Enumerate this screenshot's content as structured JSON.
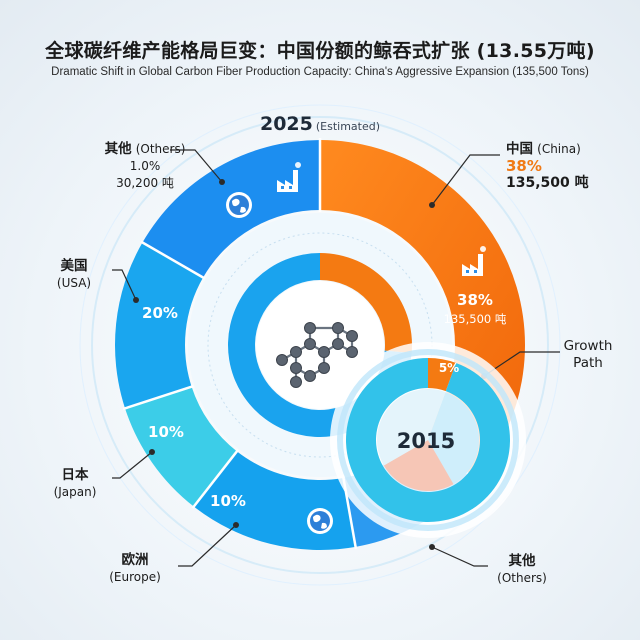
{
  "title_zh": "全球碳纤维产能格局巨变：中国份额的鲸吞式扩张 (13.55万吨)",
  "title_en": "Dramatic Shift in Global Carbon Fiber Production Capacity: China's Aggressive Expansion (135,500 Tons)",
  "colors": {
    "china": "#f47a12",
    "usa": "#1aa6ef",
    "japan": "#3ccde8",
    "europe": "#15a2ee",
    "others": "#1c8ef0",
    "unlabeled": "#2c9af0"
  },
  "chart_data": [
    {
      "type": "pie",
      "title": "2025",
      "subtitle": "(Estimated)",
      "slices": [
        {
          "label_zh": "中国",
          "label_en": "(China)",
          "value": 38,
          "value_text": "38%",
          "tons_text": "135,500 吨",
          "inner_pct": "38%",
          "inner_tons": "135,500 吨",
          "color": "#f47a12"
        },
        {
          "label_zh": "其他",
          "label_en": "(Others)",
          "value": 20,
          "value_text": "",
          "color": "#2c9af0"
        },
        {
          "label_zh": "欧洲",
          "label_en": "(Europe)",
          "value": 10,
          "value_text": "10%",
          "color": "#15a2ee"
        },
        {
          "label_zh": "日本",
          "label_en": "(Japan)",
          "value": 10,
          "value_text": "10%",
          "color": "#3ccde8"
        },
        {
          "label_zh": "美国",
          "label_en": "(USA)",
          "value": 20,
          "value_text": "20%",
          "color": "#1aa6ef"
        },
        {
          "label_zh": "其他",
          "label_en": "(Others)",
          "value": 1.0,
          "value_text": "1.0%",
          "tons_text": "30,200 吨",
          "color": "#1c8ef0"
        }
      ]
    },
    {
      "type": "pie",
      "title": "2015",
      "slices": [
        {
          "label_zh": "中国",
          "label_en": "(China)",
          "value": 5,
          "value_text": "5%",
          "color": "#f47a12"
        },
        {
          "label_zh": "其他",
          "label_en": "(Others)",
          "value": 95,
          "value_text": "",
          "color": "#3ccde8"
        }
      ]
    }
  ],
  "labels": {
    "china_zh": "中国",
    "china_en": "(China)",
    "china_pct": "38%",
    "china_tons": "135,500 吨",
    "others_top_zh": "其他",
    "others_top_en": "(Others)",
    "others_top_pct": "1.0%",
    "others_top_tons": "30,200 吨",
    "usa_zh": "美国",
    "usa_en": "(USA)",
    "japan_zh": "日本",
    "japan_en": "(Japan)",
    "europe_zh": "欧洲",
    "europe_en": "(Europe)",
    "others_bottom_zh": "其他",
    "others_bottom_en": "(Others)",
    "growth_path": "Growth\nPath",
    "year_2025": "2025",
    "year_2025_note": "(Estimated)",
    "year_2015": "2015",
    "inner_china_pct": "38%",
    "inner_china_tons": "135,500 吨",
    "usa_pct": "20%",
    "japan_pct": "10%",
    "europe_pct": "10%",
    "china_2015_pct": "5%"
  }
}
